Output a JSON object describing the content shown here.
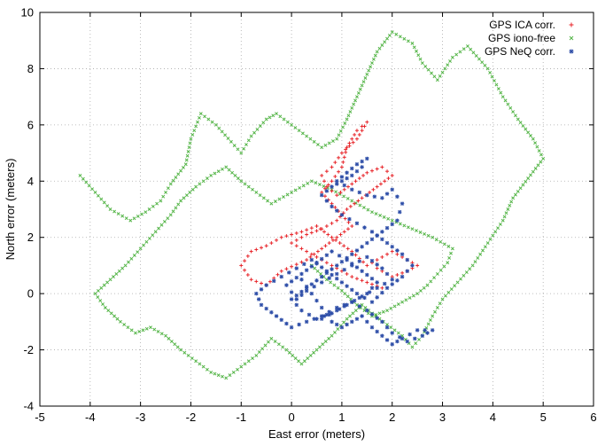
{
  "chart_data": {
    "type": "scatter",
    "xlabel": "East error (meters)",
    "ylabel": "North error (meters)",
    "xlim": [
      -5,
      6
    ],
    "ylim": [
      -4,
      10
    ],
    "x_ticks": [
      -5,
      -4,
      -3,
      -2,
      -1,
      0,
      1,
      2,
      3,
      4,
      5,
      6
    ],
    "y_ticks": [
      -4,
      -2,
      0,
      2,
      4,
      6,
      8,
      10
    ],
    "x_tick_labels": [
      "-5",
      "-4",
      "-3",
      "-2",
      "-1",
      "0",
      "1",
      "2",
      "3",
      "4",
      "5",
      "6"
    ],
    "y_tick_labels": [
      "-4",
      "-2",
      "0",
      "2",
      "4",
      "6",
      "8",
      "10"
    ],
    "grid": true,
    "legend_position": "top-right",
    "series": [
      {
        "name": "GPS ICA corr.",
        "color": "#e8262b",
        "marker": "plus",
        "x": [
          1.7,
          2.0,
          2.3,
          2.5,
          2.3,
          2.0,
          1.8,
          1.5,
          1.2,
          0.8,
          0.5,
          0.2,
          -0.2,
          -0.5,
          -0.8,
          -1.0,
          -0.8,
          -0.5,
          -0.2,
          0.3,
          0.6,
          0.9,
          1.2,
          1.0,
          0.8,
          0.6,
          0.8,
          1.0,
          1.1,
          1.3,
          1.5,
          1.3,
          1.0,
          0.8,
          0.6,
          0.7,
          0.9,
          1.2,
          1.5,
          1.8,
          2.0,
          1.7,
          1.4,
          1.1,
          0.9,
          0.6,
          0.3,
          0.0,
          0.3,
          0.6,
          0.9,
          1.2,
          1.5,
          1.8
        ],
        "y": [
          0.9,
          0.6,
          0.8,
          1.0,
          1.2,
          1.5,
          1.3,
          1.0,
          1.5,
          2.0,
          2.4,
          2.2,
          2.0,
          1.7,
          1.5,
          1.0,
          0.5,
          0.3,
          0.8,
          1.2,
          1.6,
          2.0,
          2.4,
          2.8,
          3.2,
          3.6,
          4.0,
          4.5,
          5.2,
          5.8,
          6.1,
          5.5,
          5.0,
          4.5,
          4.2,
          3.8,
          3.5,
          3.9,
          4.3,
          4.5,
          4.2,
          3.8,
          3.4,
          3.0,
          2.6,
          2.3,
          2.1,
          1.8,
          1.5,
          1.2,
          0.9,
          0.6,
          0.4,
          0.2
        ]
      },
      {
        "name": "GPS iono-free",
        "color": "#55b548",
        "marker": "cross",
        "x": [
          -4.2,
          -3.9,
          -3.6,
          -3.2,
          -2.9,
          -2.6,
          -2.4,
          -2.1,
          -2.0,
          -1.8,
          -1.5,
          -1.2,
          -1.0,
          -0.8,
          -0.5,
          -0.3,
          0.0,
          0.3,
          0.6,
          0.9,
          1.1,
          1.3,
          1.5,
          1.7,
          2.0,
          2.4,
          2.6,
          2.9,
          3.2,
          3.5,
          3.9,
          4.2,
          4.5,
          4.8,
          5.0,
          4.7,
          4.4,
          4.2,
          3.9,
          3.6,
          3.3,
          3.0,
          2.8,
          2.6,
          2.4,
          2.2,
          1.9,
          1.6,
          1.4,
          1.1,
          0.8,
          0.5,
          0.2,
          -0.1,
          -0.4,
          -0.7,
          -1.0,
          -1.3,
          -1.6,
          -1.9,
          -2.2,
          -2.5,
          -2.8,
          -3.1,
          -3.4,
          -3.7,
          -3.9,
          -3.6,
          -3.3,
          -3.0,
          -2.7,
          -2.4,
          -2.2,
          -1.9,
          -1.6,
          -1.3,
          -1.0,
          -0.7,
          -0.4,
          0.0,
          0.4,
          0.8,
          1.2,
          1.6,
          2.0,
          2.4,
          2.8,
          3.2,
          3.1,
          2.9,
          2.7,
          2.5,
          2.2,
          1.9,
          1.6,
          1.3,
          1.0,
          0.7,
          0.4
        ],
        "y": [
          4.2,
          3.6,
          3.0,
          2.6,
          2.9,
          3.3,
          3.9,
          4.6,
          5.5,
          6.4,
          6.0,
          5.4,
          5.0,
          5.6,
          6.2,
          6.4,
          6.0,
          5.6,
          5.2,
          5.5,
          6.2,
          7.0,
          7.8,
          8.6,
          9.3,
          8.9,
          8.2,
          7.6,
          8.4,
          8.8,
          8.0,
          7.0,
          6.2,
          5.5,
          4.8,
          4.1,
          3.4,
          2.6,
          1.8,
          1.0,
          0.4,
          -0.2,
          -0.8,
          -1.5,
          -1.9,
          -1.5,
          -1.1,
          -0.7,
          -0.4,
          -0.9,
          -1.5,
          -2.0,
          -2.5,
          -2.0,
          -1.6,
          -2.2,
          -2.6,
          -3.0,
          -2.8,
          -2.4,
          -2.0,
          -1.5,
          -1.2,
          -1.4,
          -1.0,
          -0.5,
          0.0,
          0.5,
          1.0,
          1.6,
          2.2,
          2.8,
          3.3,
          3.8,
          4.2,
          4.5,
          4.0,
          3.6,
          3.2,
          3.6,
          4.0,
          3.7,
          3.3,
          2.9,
          2.6,
          2.3,
          2.0,
          1.6,
          1.1,
          0.7,
          0.3,
          0.0,
          -0.3,
          -0.6,
          -0.8,
          -0.4,
          0.1,
          0.5,
          1.0
        ]
      },
      {
        "name": "GPS NeQ corr.",
        "color": "#2e4ea8",
        "marker": "star",
        "x": [
          0.2,
          0.4,
          0.6,
          0.8,
          1.0,
          1.2,
          1.4,
          1.6,
          1.8,
          2.0,
          2.2,
          2.5,
          2.8,
          2.6,
          2.3,
          2.0,
          1.8,
          1.5,
          1.2,
          0.9,
          0.6,
          0.3,
          0.0,
          -0.3,
          -0.6,
          -0.7,
          -0.5,
          -0.2,
          0.1,
          0.4,
          0.7,
          1.0,
          1.3,
          1.6,
          1.9,
          2.2,
          2.4,
          2.2,
          1.9,
          1.6,
          1.3,
          1.0,
          0.8,
          0.6,
          0.8,
          1.0,
          1.2,
          1.4,
          1.5,
          1.3,
          1.1,
          0.9,
          1.2,
          1.5,
          1.8,
          2.0,
          2.2,
          2.1,
          1.8,
          1.5,
          1.2,
          0.9,
          0.6,
          0.3,
          0.0,
          0.2,
          0.5,
          0.8,
          1.1,
          1.4,
          1.7,
          2.0,
          1.8,
          1.5,
          1.2,
          0.9,
          0.6,
          0.3,
          0.1,
          -0.1,
          0.2,
          0.5,
          0.8,
          1.1,
          1.4,
          1.7,
          1.5,
          1.2,
          0.9,
          0.6
        ],
        "y": [
          0.5,
          0.0,
          -0.5,
          -1.0,
          -1.2,
          -1.0,
          -0.8,
          -1.2,
          -1.5,
          -1.8,
          -1.6,
          -1.3,
          -1.3,
          -1.5,
          -1.7,
          -1.4,
          -1.0,
          -0.6,
          -0.3,
          -0.5,
          -0.8,
          -1.0,
          -1.2,
          -0.8,
          -0.4,
          0.0,
          0.3,
          0.6,
          0.9,
          1.2,
          0.8,
          0.4,
          0.0,
          -0.3,
          0.2,
          0.6,
          1.0,
          1.4,
          1.8,
          2.2,
          2.5,
          2.8,
          3.1,
          3.5,
          3.8,
          4.0,
          4.2,
          4.5,
          4.8,
          4.6,
          4.3,
          4.0,
          3.7,
          3.5,
          3.4,
          3.7,
          3.2,
          2.6,
          2.2,
          1.8,
          1.4,
          1.0,
          0.6,
          0.2,
          -0.2,
          -0.6,
          -0.9,
          -0.7,
          -0.4,
          -0.1,
          0.2,
          0.5,
          0.9,
          1.3,
          1.0,
          0.7,
          0.4,
          0.1,
          -0.2,
          0.3,
          0.7,
          1.1,
          1.5,
          1.2,
          0.8,
          0.4,
          0.0,
          -0.3,
          -0.6,
          -0.9
        ]
      }
    ]
  }
}
